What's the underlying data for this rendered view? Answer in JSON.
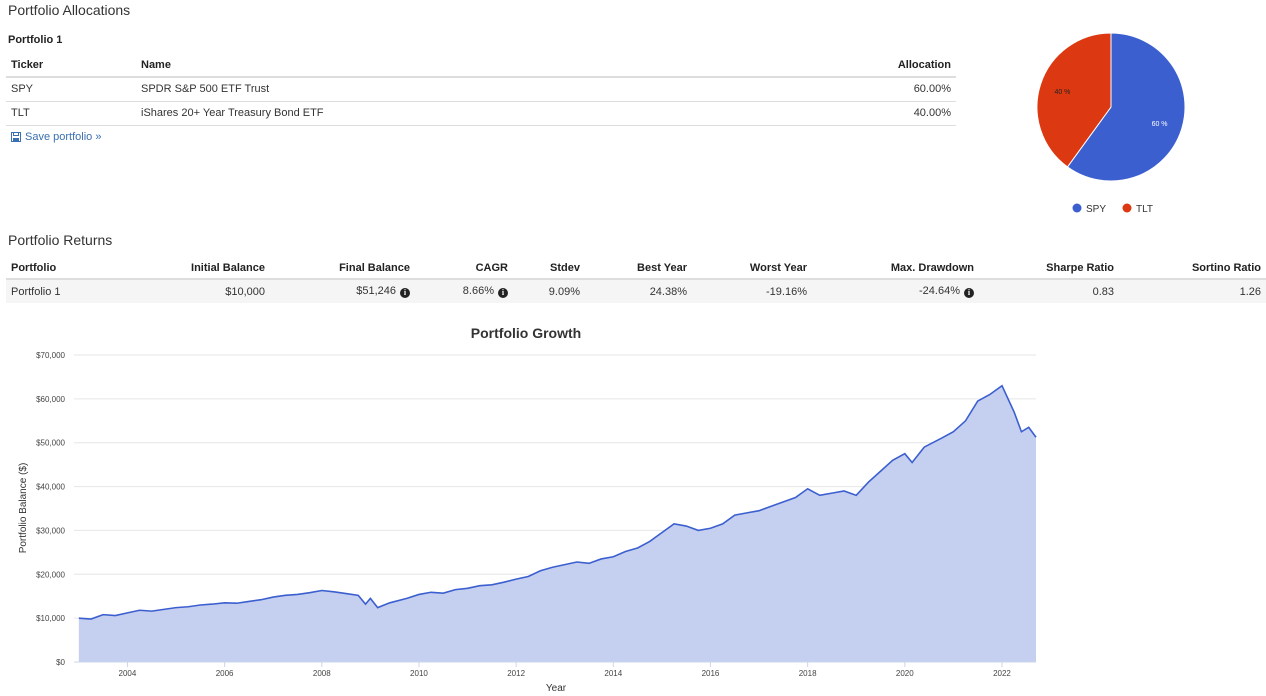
{
  "allocations": {
    "title": "Portfolio Allocations",
    "portfolio_name": "Portfolio 1",
    "headers": {
      "ticker": "Ticker",
      "name": "Name",
      "allocation": "Allocation"
    },
    "rows": [
      {
        "ticker": "SPY",
        "name": "SPDR S&P 500 ETF Trust",
        "allocation": "60.00%"
      },
      {
        "ticker": "TLT",
        "name": "iShares 20+ Year Treasury Bond ETF",
        "allocation": "40.00%"
      }
    ],
    "save_link": "Save portfolio »"
  },
  "returns": {
    "title": "Portfolio Returns",
    "headers": {
      "portfolio": "Portfolio",
      "initial": "Initial Balance",
      "final": "Final Balance",
      "cagr": "CAGR",
      "stdev": "Stdev",
      "best": "Best Year",
      "worst": "Worst Year",
      "drawdown": "Max. Drawdown",
      "sharpe": "Sharpe Ratio",
      "sortino": "Sortino Ratio"
    },
    "row": {
      "portfolio": "Portfolio 1",
      "initial": "$10,000",
      "final": "$51,246",
      "cagr": "8.66%",
      "stdev": "9.09%",
      "best": "24.38%",
      "worst": "-19.16%",
      "drawdown": "-24.64%",
      "sharpe": "0.83",
      "sortino": "1.26"
    }
  },
  "colors": {
    "spy": "#3b5fcf",
    "tlt": "#dc3912",
    "area_fill": "#c5cff0",
    "area_line": "#3b5fcf"
  },
  "chart_data": [
    {
      "type": "pie",
      "slices": [
        {
          "label": "SPY",
          "value": 60,
          "data_label": "60 %"
        },
        {
          "label": "TLT",
          "value": 40,
          "data_label": "40 %"
        }
      ],
      "legend": [
        "SPY",
        "TLT"
      ],
      "legend_position": "bottom"
    },
    {
      "type": "area",
      "title": "Portfolio Growth",
      "xlabel": "Year",
      "ylabel": "Portfolio Balance ($)",
      "xlim": [
        2002.9,
        2022.7
      ],
      "ylim": [
        0,
        70000
      ],
      "x_ticks": [
        2004,
        2006,
        2008,
        2010,
        2012,
        2014,
        2016,
        2018,
        2020,
        2022
      ],
      "y_ticks": [
        0,
        10000,
        20000,
        30000,
        40000,
        50000,
        60000,
        70000
      ],
      "y_tick_labels": [
        "$0",
        "$10,000",
        "$20,000",
        "$30,000",
        "$40,000",
        "$50,000",
        "$60,000",
        "$70,000"
      ],
      "series": [
        {
          "name": "Portfolio 1",
          "points": [
            [
              2003.0,
              10000
            ],
            [
              2003.25,
              9800
            ],
            [
              2003.5,
              10800
            ],
            [
              2003.75,
              10600
            ],
            [
              2004.0,
              11200
            ],
            [
              2004.25,
              11800
            ],
            [
              2004.5,
              11600
            ],
            [
              2004.75,
              12000
            ],
            [
              2005.0,
              12400
            ],
            [
              2005.25,
              12600
            ],
            [
              2005.5,
              13000
            ],
            [
              2005.75,
              13200
            ],
            [
              2006.0,
              13500
            ],
            [
              2006.25,
              13400
            ],
            [
              2006.5,
              13800
            ],
            [
              2006.75,
              14200
            ],
            [
              2007.0,
              14800
            ],
            [
              2007.25,
              15200
            ],
            [
              2007.5,
              15400
            ],
            [
              2007.75,
              15800
            ],
            [
              2008.0,
              16300
            ],
            [
              2008.25,
              16000
            ],
            [
              2008.5,
              15600
            ],
            [
              2008.75,
              15200
            ],
            [
              2008.9,
              13200
            ],
            [
              2009.0,
              14500
            ],
            [
              2009.15,
              12400
            ],
            [
              2009.4,
              13500
            ],
            [
              2009.75,
              14500
            ],
            [
              2010.0,
              15400
            ],
            [
              2010.25,
              15900
            ],
            [
              2010.5,
              15700
            ],
            [
              2010.75,
              16500
            ],
            [
              2011.0,
              16800
            ],
            [
              2011.25,
              17400
            ],
            [
              2011.5,
              17600
            ],
            [
              2011.75,
              18200
            ],
            [
              2012.0,
              18900
            ],
            [
              2012.25,
              19500
            ],
            [
              2012.5,
              20800
            ],
            [
              2012.75,
              21600
            ],
            [
              2013.0,
              22200
            ],
            [
              2013.25,
              22800
            ],
            [
              2013.5,
              22500
            ],
            [
              2013.75,
              23500
            ],
            [
              2014.0,
              24000
            ],
            [
              2014.25,
              25200
            ],
            [
              2014.5,
              26000
            ],
            [
              2014.75,
              27500
            ],
            [
              2015.0,
              29500
            ],
            [
              2015.25,
              31500
            ],
            [
              2015.5,
              31000
            ],
            [
              2015.75,
              30000
            ],
            [
              2016.0,
              30500
            ],
            [
              2016.25,
              31500
            ],
            [
              2016.5,
              33500
            ],
            [
              2016.75,
              34000
            ],
            [
              2017.0,
              34500
            ],
            [
              2017.25,
              35500
            ],
            [
              2017.5,
              36500
            ],
            [
              2017.75,
              37500
            ],
            [
              2018.0,
              39500
            ],
            [
              2018.25,
              38000
            ],
            [
              2018.5,
              38500
            ],
            [
              2018.75,
              39000
            ],
            [
              2019.0,
              38000
            ],
            [
              2019.25,
              41000
            ],
            [
              2019.5,
              43500
            ],
            [
              2019.75,
              46000
            ],
            [
              2020.0,
              47500
            ],
            [
              2020.15,
              45500
            ],
            [
              2020.4,
              49000
            ],
            [
              2020.75,
              51000
            ],
            [
              2021.0,
              52500
            ],
            [
              2021.25,
              55000
            ],
            [
              2021.5,
              59500
            ],
            [
              2021.75,
              61000
            ],
            [
              2022.0,
              63000
            ],
            [
              2022.25,
              57000
            ],
            [
              2022.4,
              52500
            ],
            [
              2022.55,
              53500
            ],
            [
              2022.7,
              51246
            ]
          ]
        }
      ]
    }
  ]
}
